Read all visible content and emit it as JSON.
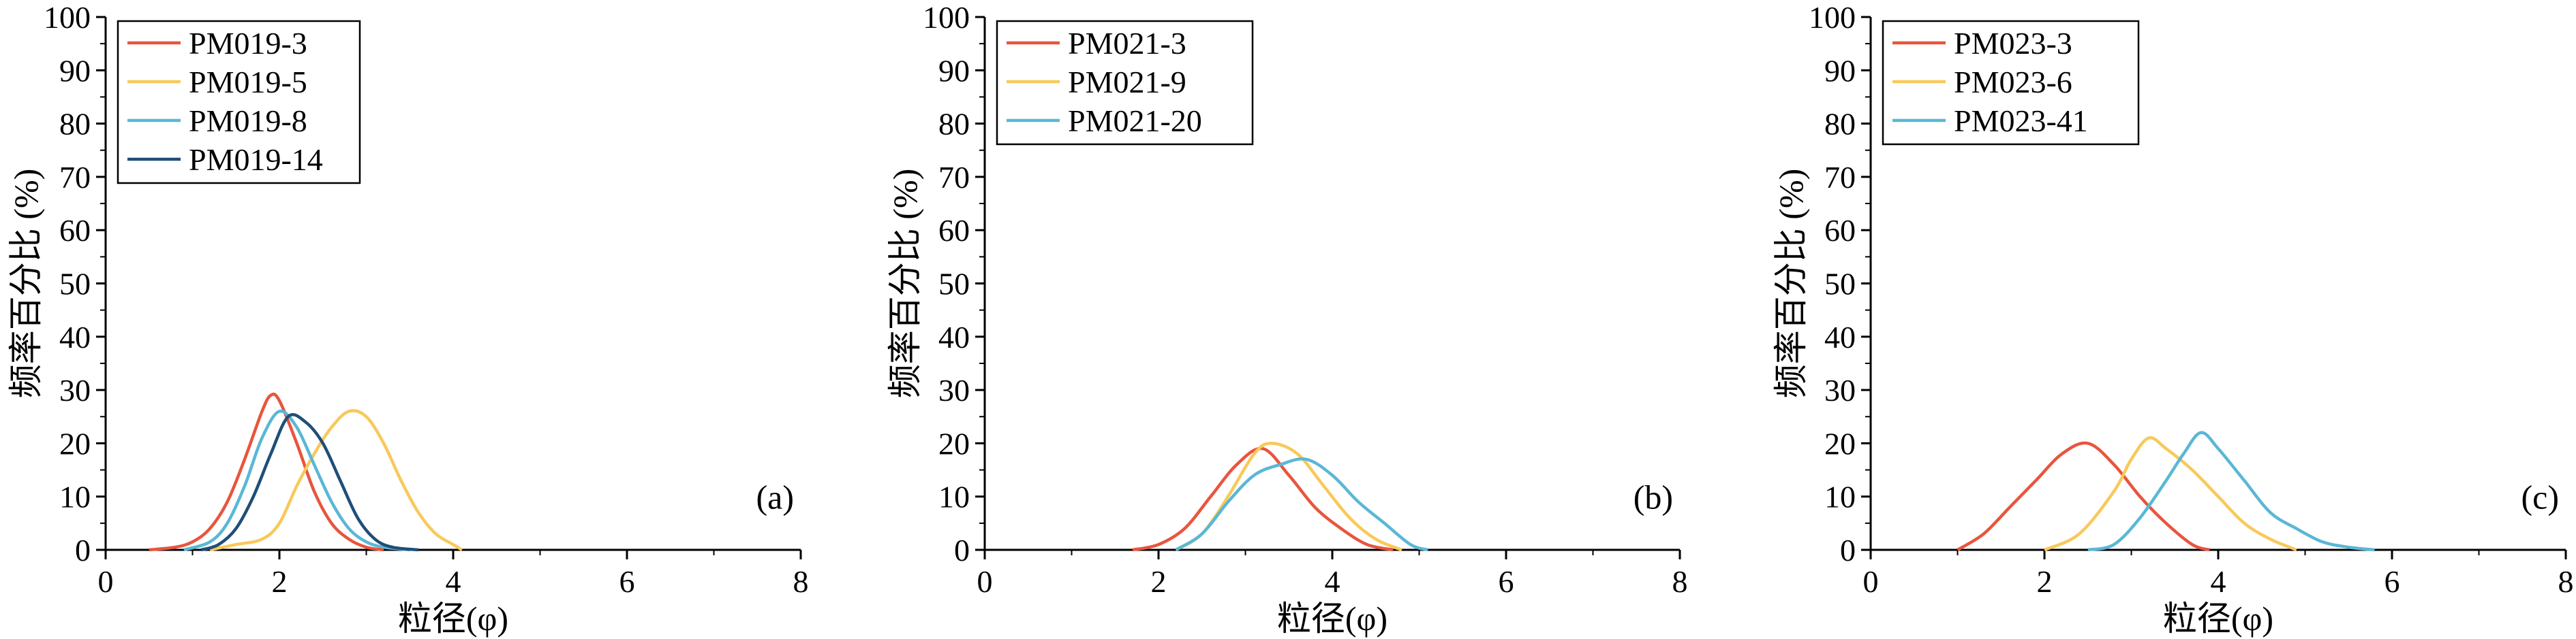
{
  "chart_data": [
    {
      "type": "line",
      "panel_label": "(a)",
      "xlabel": "粒径(φ)",
      "ylabel": "频率百分比 (%)",
      "xlim": [
        0,
        8
      ],
      "ylim": [
        0,
        100
      ],
      "xticks": [
        0,
        2,
        4,
        6,
        8
      ],
      "yticks": [
        0,
        10,
        20,
        30,
        40,
        50,
        60,
        70,
        80,
        90,
        100
      ],
      "grid": false,
      "legend_position": "top-left",
      "series": [
        {
          "name": "PM019-3",
          "color": "#e8553d",
          "x": [
            0.5,
            0.8,
            1.0,
            1.2,
            1.4,
            1.6,
            1.8,
            1.9,
            2.0,
            2.2,
            2.4,
            2.6,
            2.8,
            3.0,
            3.2
          ],
          "y": [
            0,
            0.5,
            1.5,
            4,
            9,
            17,
            26,
            29,
            28,
            20,
            11,
            5,
            2,
            0.5,
            0
          ]
        },
        {
          "name": "PM019-5",
          "color": "#f8c95a",
          "x": [
            1.2,
            1.5,
            1.8,
            2.0,
            2.2,
            2.4,
            2.6,
            2.8,
            3.0,
            3.2,
            3.4,
            3.6,
            3.8,
            4.0,
            4.1
          ],
          "y": [
            0,
            1,
            2,
            5,
            12,
            18,
            23,
            26,
            25,
            20,
            13,
            7,
            3,
            1,
            0
          ]
        },
        {
          "name": "PM019-8",
          "color": "#5ab7d6",
          "x": [
            0.9,
            1.2,
            1.4,
            1.6,
            1.8,
            2.0,
            2.2,
            2.4,
            2.6,
            2.8,
            3.0,
            3.2,
            3.5
          ],
          "y": [
            0,
            1.5,
            5,
            12,
            21,
            26,
            23,
            16,
            9,
            4,
            1.5,
            0.5,
            0
          ]
        },
        {
          "name": "PM019-14",
          "color": "#1f4e79",
          "x": [
            1.1,
            1.3,
            1.5,
            1.7,
            1.9,
            2.1,
            2.3,
            2.5,
            2.7,
            2.9,
            3.1,
            3.3,
            3.6
          ],
          "y": [
            0,
            1,
            4,
            10,
            18,
            25,
            24,
            20,
            13,
            6,
            2,
            0.5,
            0
          ]
        }
      ]
    },
    {
      "type": "line",
      "panel_label": "(b)",
      "xlabel": "粒径(φ)",
      "ylabel": "频率百分比 (%)",
      "xlim": [
        0,
        8
      ],
      "ylim": [
        0,
        100
      ],
      "xticks": [
        0,
        2,
        4,
        6,
        8
      ],
      "yticks": [
        0,
        10,
        20,
        30,
        40,
        50,
        60,
        70,
        80,
        90,
        100
      ],
      "grid": false,
      "legend_position": "top-left",
      "series": [
        {
          "name": "PM021-3",
          "color": "#e8553d",
          "x": [
            1.7,
            2.0,
            2.3,
            2.6,
            2.9,
            3.2,
            3.5,
            3.8,
            4.1,
            4.4,
            4.7
          ],
          "y": [
            0,
            1,
            4,
            10,
            16,
            19,
            14,
            8,
            4,
            1,
            0
          ]
        },
        {
          "name": "PM021-9",
          "color": "#f8c95a",
          "x": [
            2.2,
            2.5,
            2.8,
            3.1,
            3.3,
            3.6,
            3.9,
            4.2,
            4.5,
            4.8
          ],
          "y": [
            0,
            3,
            10,
            18,
            20,
            18,
            12,
            6,
            2,
            0
          ]
        },
        {
          "name": "PM021-20",
          "color": "#5ab7d6",
          "x": [
            2.2,
            2.5,
            2.8,
            3.1,
            3.4,
            3.7,
            4.0,
            4.3,
            4.6,
            4.9,
            5.1
          ],
          "y": [
            0,
            3,
            9,
            14,
            16,
            17,
            14,
            9,
            5,
            1,
            0
          ]
        }
      ]
    },
    {
      "type": "line",
      "panel_label": "(c)",
      "xlabel": "粒径(φ)",
      "ylabel": "频率百分比 (%)",
      "xlim": [
        0,
        8
      ],
      "ylim": [
        0,
        100
      ],
      "xticks": [
        0,
        2,
        4,
        6,
        8
      ],
      "yticks": [
        0,
        10,
        20,
        30,
        40,
        50,
        60,
        70,
        80,
        90,
        100
      ],
      "grid": false,
      "legend_position": "top-left",
      "series": [
        {
          "name": "PM023-3",
          "color": "#e8553d",
          "x": [
            1.0,
            1.3,
            1.6,
            1.9,
            2.2,
            2.5,
            2.8,
            3.1,
            3.4,
            3.7,
            3.9
          ],
          "y": [
            0,
            3,
            8,
            13,
            18,
            20,
            16,
            10,
            5,
            1,
            0
          ]
        },
        {
          "name": "PM023-6",
          "color": "#f8c95a",
          "x": [
            2.0,
            2.4,
            2.8,
            3.0,
            3.2,
            3.4,
            3.7,
            4.0,
            4.3,
            4.6,
            4.9
          ],
          "y": [
            0,
            3,
            11,
            17,
            21,
            19,
            15,
            10,
            5,
            2,
            0
          ]
        },
        {
          "name": "PM023-41",
          "color": "#5ab7d6",
          "x": [
            2.5,
            2.8,
            3.1,
            3.4,
            3.6,
            3.8,
            4.0,
            4.3,
            4.6,
            4.9,
            5.2,
            5.5,
            5.8
          ],
          "y": [
            0,
            1,
            6,
            13,
            18,
            22,
            19,
            13,
            7,
            4,
            1.5,
            0.5,
            0
          ]
        }
      ]
    }
  ]
}
